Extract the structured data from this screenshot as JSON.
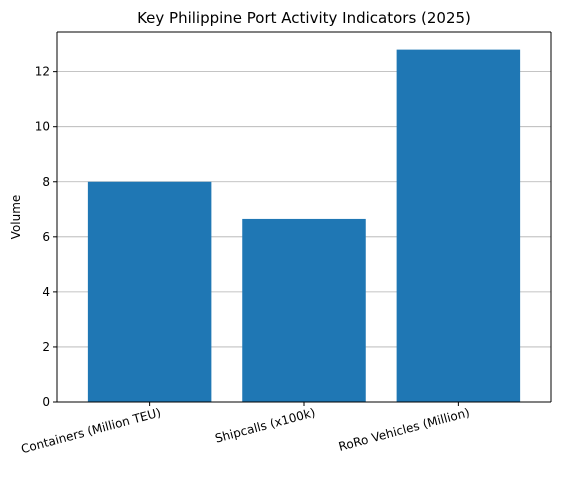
{
  "chart_data": {
    "type": "bar",
    "title": "Key Philippine Port Activity Indicators (2025)",
    "xlabel": "",
    "ylabel": "Volume",
    "categories": [
      "Containers (Million TEU)",
      "Shipcalls (x100k)",
      "RoRo Vehicles (Million)"
    ],
    "values": [
      8.0,
      6.65,
      12.8
    ],
    "ylim": [
      0,
      13.44
    ],
    "yticks": [
      "0",
      "2",
      "4",
      "6",
      "8",
      "10",
      "12"
    ],
    "grid": "y-axis major",
    "legend": "none",
    "colors": {
      "bar": "#1f77b4",
      "grid": "#b0b0b0",
      "axis": "#000000"
    }
  }
}
